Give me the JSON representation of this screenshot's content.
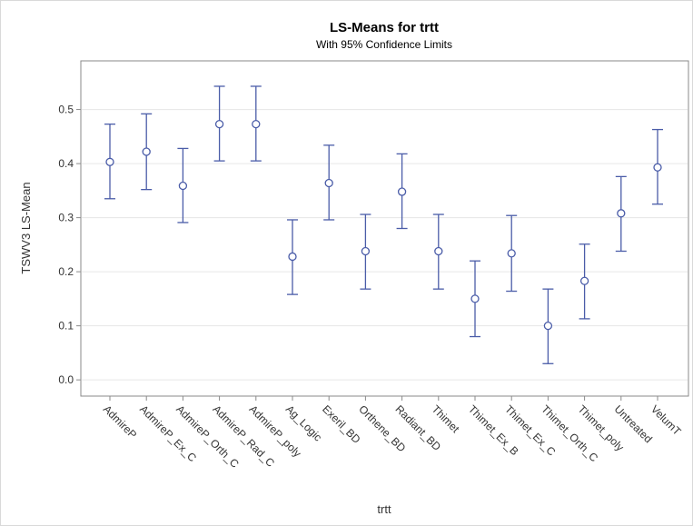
{
  "chart_data": {
    "type": "scatter",
    "title": "LS-Means for trtt",
    "subtitle": "With 95% Confidence Limits",
    "xlabel": "trtt",
    "ylabel": "TSWV3 LS-Mean",
    "ylim": [
      -0.03,
      0.59
    ],
    "yticks": [
      "0.0",
      "0.1",
      "0.2",
      "0.3",
      "0.4",
      "0.5"
    ],
    "yticks_values": [
      0.0,
      0.1,
      0.2,
      0.3,
      0.4,
      0.5
    ],
    "grid": true,
    "categories": [
      "AdmireP",
      "AdmireP_Ex_C",
      "AdmireP_Orth_C",
      "AdmireP_Rad_C",
      "AdmireP_poly",
      "Ag_Logic",
      "Exeril_BD",
      "Orthene_BD",
      "Radiant_BD",
      "Thimet",
      "Thimet_Ex_B",
      "Thimet_Ex_C",
      "Thimet_Orth_C",
      "Thimet_poly",
      "Untreated",
      "VelumT"
    ],
    "series": [
      {
        "values": [
          0.403,
          0.422,
          0.359,
          0.473,
          0.473,
          0.228,
          0.364,
          0.238,
          0.348,
          0.238,
          0.15,
          0.234,
          0.1,
          0.183,
          0.308,
          0.393
        ],
        "lower": [
          0.335,
          0.352,
          0.291,
          0.405,
          0.405,
          0.158,
          0.296,
          0.168,
          0.28,
          0.168,
          0.08,
          0.164,
          0.03,
          0.113,
          0.238,
          0.325
        ],
        "upper": [
          0.473,
          0.492,
          0.428,
          0.543,
          0.543,
          0.296,
          0.434,
          0.306,
          0.418,
          0.306,
          0.22,
          0.304,
          0.168,
          0.251,
          0.376,
          0.463
        ]
      }
    ],
    "colors": {
      "marker": "#4a5ca8",
      "errorbar": "#4a5ca8",
      "grid": "#e6e6e6",
      "axis": "#8a8a8a",
      "plot_bg": "#ffffff"
    }
  }
}
